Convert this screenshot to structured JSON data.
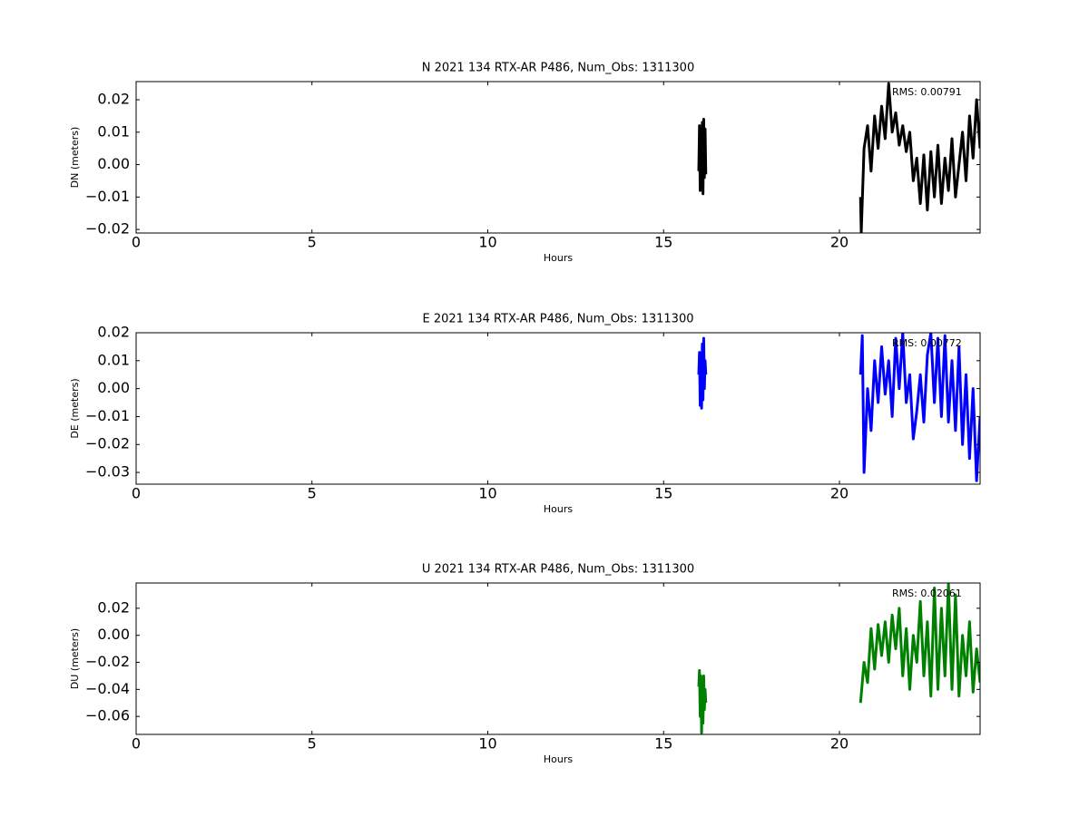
{
  "chart_data": [
    {
      "type": "line",
      "title": "N 2021 134 RTX-AR  P486, Num_Obs: 1311300",
      "xlabel": "Hours",
      "ylabel": "DN (meters)",
      "annotation": "RMS:  0.00791",
      "annotation_color": "#0000ff",
      "xlim": [
        0,
        24
      ],
      "xticks": [
        0,
        5,
        10,
        15,
        20
      ],
      "ylim": [
        -0.0211,
        0.0256
      ],
      "yticks": [
        {
          "value": -0.02,
          "label": "−0.02"
        },
        {
          "value": -0.01,
          "label": "−0.01"
        },
        {
          "value": 0,
          "label": "0.00"
        },
        0.01,
        0.02
      ],
      "color": "#000000",
      "x": [
        16.0,
        16.02,
        16.04,
        16.06,
        16.08,
        16.1,
        16.12,
        16.14,
        16.16,
        16.18,
        16.2,
        18,
        20.6,
        20.62,
        20.7,
        20.8,
        20.9,
        21.0,
        21.1,
        21.2,
        21.3,
        21.4,
        21.5,
        21.6,
        21.7,
        21.8,
        21.9,
        22.0,
        22.1,
        22.2,
        22.3,
        22.4,
        22.5,
        22.6,
        22.7,
        22.8,
        22.9,
        23.0,
        23.1,
        23.2,
        23.3,
        23.4,
        23.5,
        23.6,
        23.7,
        23.8,
        23.9,
        24.0
      ],
      "values": [
        -0.002,
        0.012,
        -0.008,
        0.01,
        -0.005,
        0.013,
        -0.009,
        0.014,
        -0.004,
        0.011,
        -0.003,
        null,
        -0.01,
        -0.021,
        0.005,
        0.012,
        -0.002,
        0.015,
        0.005,
        0.018,
        0.008,
        0.025,
        0.01,
        0.016,
        0.006,
        0.012,
        0.004,
        0.01,
        -0.005,
        0.002,
        -0.012,
        0.003,
        -0.014,
        0.004,
        -0.01,
        0.006,
        -0.012,
        0.002,
        -0.008,
        0.008,
        -0.01,
        0.0,
        0.01,
        -0.005,
        0.015,
        0.002,
        0.02,
        0.005
      ]
    },
    {
      "type": "line",
      "title": "E 2021 134 RTX-AR  P486, Num_Obs: 1311300",
      "xlabel": "Hours",
      "ylabel": "DE (meters)",
      "annotation": "RMS:  0.00772",
      "annotation_color": "#0000ff",
      "xlim": [
        0,
        24
      ],
      "xticks": [
        0,
        5,
        10,
        15,
        20
      ],
      "ylim": [
        -0.0342,
        0.02
      ],
      "yticks": [
        {
          "value": -0.03,
          "label": "−0.03"
        },
        {
          "value": -0.02,
          "label": "−0.02"
        },
        {
          "value": -0.01,
          "label": "−0.01"
        },
        {
          "value": 0,
          "label": "0.00"
        },
        0.01,
        0.02
      ],
      "color": "#0000ff",
      "x": [
        16.0,
        16.02,
        16.04,
        16.06,
        16.08,
        16.1,
        16.12,
        16.14,
        16.16,
        16.18,
        16.2,
        18,
        20.6,
        20.65,
        20.7,
        20.8,
        20.9,
        21.0,
        21.1,
        21.2,
        21.3,
        21.4,
        21.5,
        21.6,
        21.7,
        21.8,
        21.9,
        22.0,
        22.1,
        22.2,
        22.3,
        22.4,
        22.5,
        22.6,
        22.7,
        22.8,
        22.9,
        23.0,
        23.1,
        23.2,
        23.3,
        23.4,
        23.5,
        23.6,
        23.7,
        23.8,
        23.9,
        24.0
      ],
      "values": [
        0.005,
        0.013,
        -0.006,
        0.012,
        -0.007,
        0.016,
        -0.004,
        0.018,
        0.0,
        0.01,
        0.005,
        null,
        0.005,
        0.019,
        -0.03,
        0.0,
        -0.015,
        0.01,
        -0.005,
        0.015,
        -0.002,
        0.01,
        -0.01,
        0.018,
        0.0,
        0.02,
        -0.005,
        0.005,
        -0.018,
        -0.008,
        0.005,
        -0.012,
        0.012,
        0.02,
        -0.005,
        0.018,
        -0.01,
        0.019,
        -0.012,
        0.01,
        -0.015,
        0.015,
        -0.02,
        0.005,
        -0.025,
        0.0,
        -0.033,
        -0.01
      ]
    },
    {
      "type": "line",
      "title": "U 2021 134 RTX-AR  P486, Num_Obs: 1311300",
      "xlabel": "Hours",
      "ylabel": "DU (meters)",
      "annotation": "RMS:  0.02061",
      "annotation_color": "#0000ff",
      "xlim": [
        0,
        24
      ],
      "xticks": [
        0,
        5,
        10,
        15,
        20
      ],
      "ylim": [
        -0.0733,
        0.0387
      ],
      "yticks": [
        {
          "value": -0.06,
          "label": "−0.06"
        },
        {
          "value": -0.04,
          "label": "−0.04"
        },
        {
          "value": -0.02,
          "label": "−0.02"
        },
        {
          "value": 0,
          "label": "0.00"
        },
        0.02
      ],
      "color": "#008000",
      "x": [
        16.0,
        16.02,
        16.04,
        16.06,
        16.08,
        16.1,
        16.12,
        16.14,
        16.16,
        16.18,
        16.2,
        18,
        20.6,
        20.7,
        20.8,
        20.9,
        21.0,
        21.1,
        21.2,
        21.3,
        21.4,
        21.5,
        21.6,
        21.7,
        21.8,
        21.9,
        22.0,
        22.1,
        22.2,
        22.3,
        22.4,
        22.5,
        22.6,
        22.7,
        22.8,
        22.9,
        23.0,
        23.1,
        23.2,
        23.3,
        23.4,
        23.5,
        23.6,
        23.7,
        23.8,
        23.9,
        24.0
      ],
      "values": [
        -0.038,
        -0.026,
        -0.06,
        -0.03,
        -0.072,
        -0.035,
        -0.065,
        -0.03,
        -0.055,
        -0.04,
        -0.05,
        null,
        -0.05,
        -0.02,
        -0.035,
        0.005,
        -0.025,
        0.008,
        -0.015,
        0.01,
        -0.02,
        0.015,
        -0.01,
        0.02,
        -0.03,
        0.005,
        -0.04,
        0.0,
        -0.02,
        0.025,
        -0.03,
        0.01,
        -0.045,
        0.035,
        -0.04,
        0.02,
        -0.03,
        0.038,
        -0.04,
        0.03,
        -0.045,
        0.0,
        -0.03,
        0.01,
        -0.042,
        -0.01,
        -0.035
      ]
    }
  ]
}
